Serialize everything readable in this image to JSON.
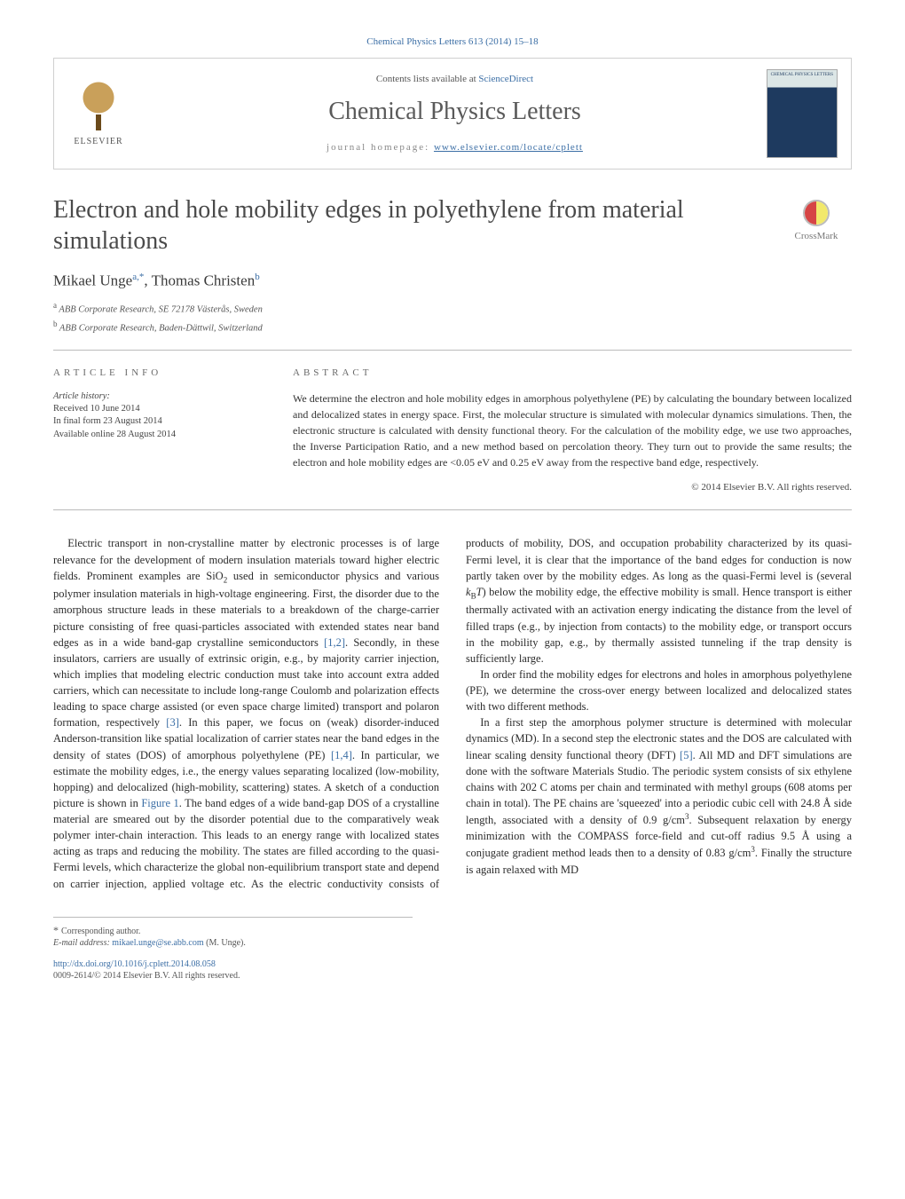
{
  "header": {
    "top_citation": "Chemical Physics Letters 613 (2014) 15–18",
    "contents_line_prefix": "Contents lists available at ",
    "contents_link": "ScienceDirect",
    "journal_name": "Chemical Physics Letters",
    "homepage_prefix": "journal homepage: ",
    "homepage_url": "www.elsevier.com/locate/cplett",
    "elsevier_label": "ELSEVIER",
    "cover_label": "CHEMICAL\nPHYSICS\nLETTERS"
  },
  "crossmark_label": "CrossMark",
  "title": "Electron and hole mobility edges in polyethylene from material simulations",
  "authors_html": "Mikael Unge",
  "author1_sup": "a,",
  "author1_ast": "*",
  "author_sep": ", Thomas Christen",
  "author2_sup": "b",
  "affiliations": [
    {
      "sup": "a",
      "text": " ABB Corporate Research, SE 72178 Västerås, Sweden"
    },
    {
      "sup": "b",
      "text": " ABB Corporate Research, Baden-Dättwil, Switzerland"
    }
  ],
  "article_info": {
    "heading": "article info",
    "history_label": "Article history:",
    "items": [
      "Received 10 June 2014",
      "In final form 23 August 2014",
      "Available online 28 August 2014"
    ]
  },
  "abstract": {
    "heading": "abstract",
    "text": "We determine the electron and hole mobility edges in amorphous polyethylene (PE) by calculating the boundary between localized and delocalized states in energy space. First, the molecular structure is simulated with molecular dynamics simulations. Then, the electronic structure is calculated with density functional theory. For the calculation of the mobility edge, we use two approaches, the Inverse Participation Ratio, and a new method based on percolation theory. They turn out to provide the same results; the electron and hole mobility edges are <0.05 eV and 0.25 eV away from the respective band edge, respectively.",
    "copyright": "© 2014 Elsevier B.V. All rights reserved."
  },
  "body": {
    "p1a": "Electric transport in non-crystalline matter by electronic processes is of large relevance for the development of modern insulation materials toward higher electric fields. Prominent examples are SiO",
    "p1b": " used in semiconductor physics and various polymer insulation materials in high-voltage engineering. First, the disorder due to the amorphous structure leads in these materials to a breakdown of the charge-carrier picture consisting of free quasi-particles associated with extended states near band edges as in a wide band-gap crystalline semiconductors ",
    "ref12": "[1,2]",
    "p1c": ". Secondly, in these insulators, carriers are usually of extrinsic origin, e.g., by majority carrier injection, which implies that modeling electric conduction must take into account extra added carriers, which can necessitate to include long-range Coulomb and polarization effects leading to space charge assisted (or even space charge limited) transport and polaron formation, respectively ",
    "ref3": "[3]",
    "p1d": ". In this paper, we focus on (weak) disorder-induced Anderson-transition like spatial localization of carrier states near the band edges in the density of states (DOS) of amorphous polyethylene (PE) ",
    "ref14": "[1,4]",
    "p1e": ". In particular, we estimate the mobility edges, i.e., the energy values separating localized (low-mobility, hopping) and delocalized (high-mobility, scattering) states. A sketch of a conduction picture is shown in ",
    "fig1": "Figure 1",
    "p1f": ". The band edges of a wide band-gap DOS of a crystalline material are smeared out by the disorder potential due to the comparatively weak polymer inter-chain interaction. This leads to an energy range with localized states acting as traps and reducing the mobility. The states are filled according to the quasi-Fermi levels, which characterize the global non-equilibrium transport state and depend on carrier injection, applied voltage etc. As the electric conductivity consists of products of mobility, DOS, and occupation probability characterized by its quasi-Fermi level, it is clear that the importance of the band edges for conduction is now partly taken over by the mobility edges. As long as the quasi-Fermi level is (several ",
    "kbt": "k",
    "kbt_sub": "B",
    "kbt_t": "T",
    "p1g": ") below the mobility edge, the effective mobility is small. Hence transport is either thermally activated with an activation energy indicating the distance from the level of filled traps (e.g., by injection from contacts) to the mobility edge, or transport occurs in the mobility gap, e.g., by thermally assisted tunneling if the trap density is sufficiently large.",
    "p2": "In order find the mobility edges for electrons and holes in amorphous polyethylene (PE), we determine the cross-over energy between localized and delocalized states with two different methods.",
    "p3a": "In a first step the amorphous polymer structure is determined with molecular dynamics (MD). In a second step the electronic states and the DOS are calculated with linear scaling density functional theory (DFT) ",
    "ref5": "[5]",
    "p3b": ". All MD and DFT simulations are done with the software Materials Studio. The periodic system consists of six ethylene chains with 202 C atoms per chain and terminated with methyl groups (608 atoms per chain in total). The PE chains are 'squeezed' into a periodic cubic cell with 24.8 Å side length, associated with a density of 0.9 g/cm",
    "cube": "3",
    "p3c": ". Subsequent relaxation by energy minimization with the COMPASS force-field and cut-off radius 9.5 Å using a conjugate gradient method leads then to a density of 0.83 g/cm",
    "p3d": ". Finally the structure is again relaxed with MD"
  },
  "footer": {
    "corr_label": "Corresponding author.",
    "email_label": "E-mail address: ",
    "email": "mikael.unge@se.abb.com",
    "email_name": " (M. Unge).",
    "doi_url": "http://dx.doi.org/10.1016/j.cplett.2014.08.058",
    "issn_line": "0009-2614/© 2014 Elsevier B.V. All rights reserved."
  },
  "colors": {
    "link": "#3b6ea5",
    "text": "#2b2b2b",
    "muted": "#6a6a6a",
    "border": "#bbbbbb"
  }
}
